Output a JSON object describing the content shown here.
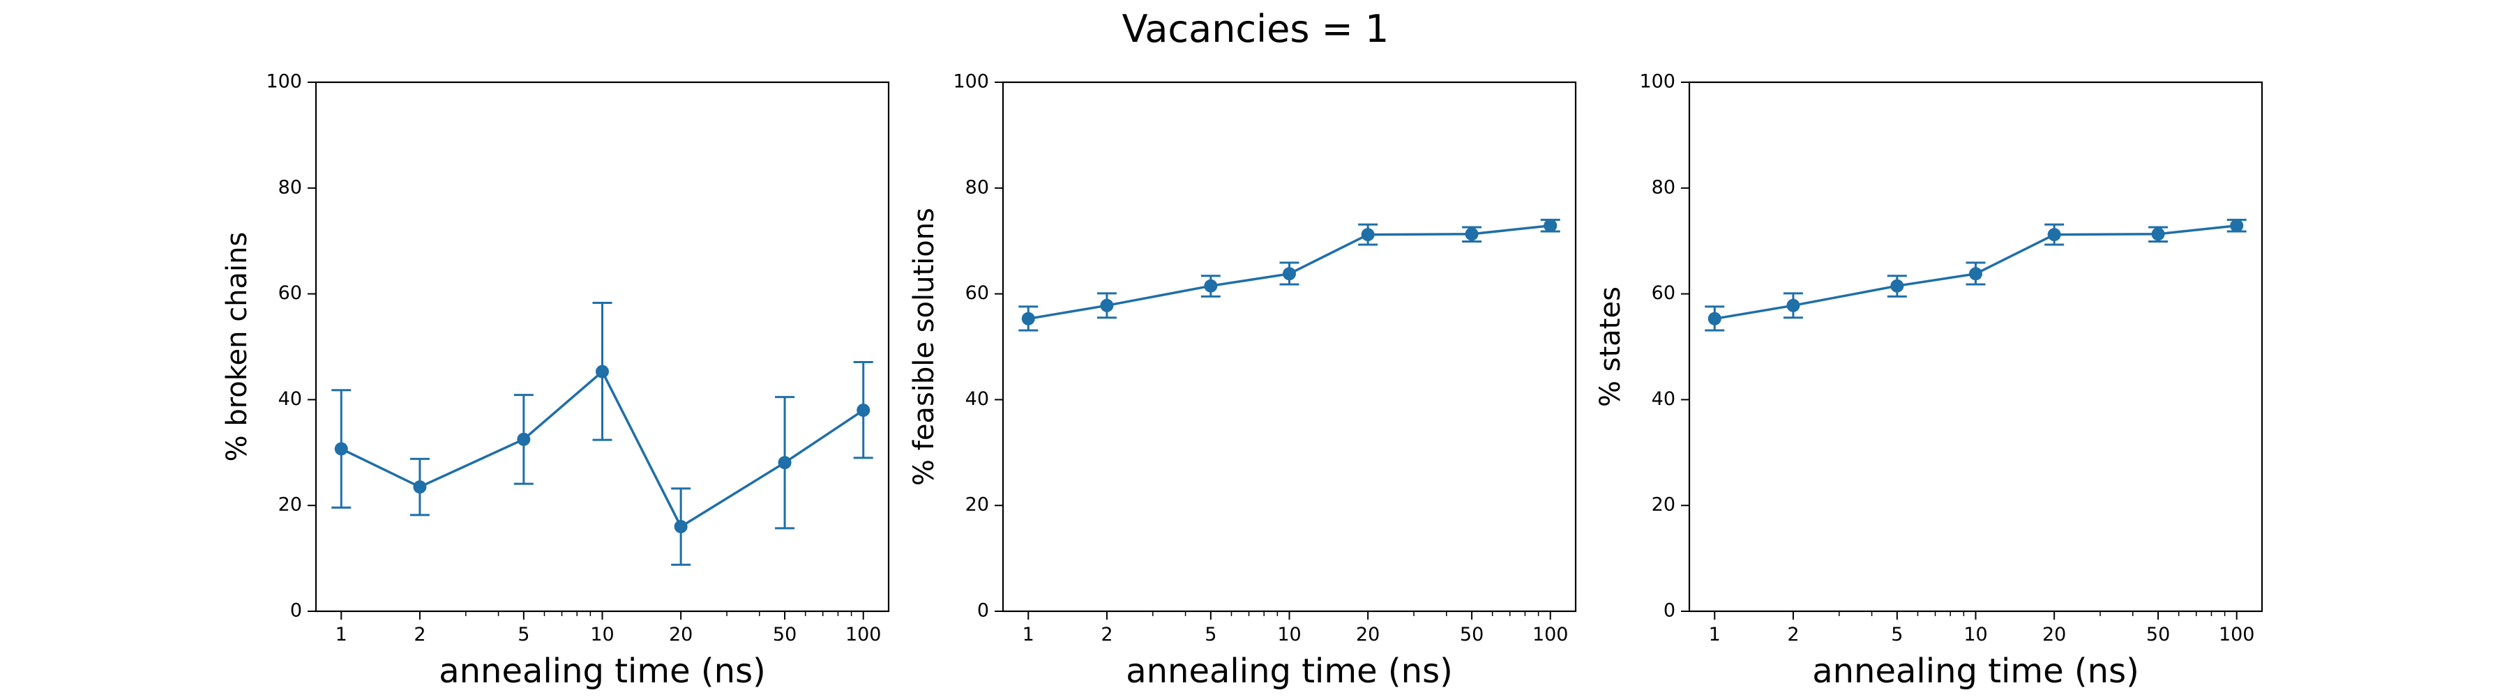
{
  "figure": {
    "suptitle": "Vacancies = 1"
  },
  "style": {
    "series_color": "#1f6fa8",
    "axis_color": "#000000",
    "background": "#ffffff"
  },
  "chart_data": [
    {
      "type": "line",
      "xscale": "log",
      "xlabel": "annealing time (ns)",
      "ylabel": "% broken chains",
      "x": [
        1,
        2,
        5,
        10,
        20,
        50,
        100
      ],
      "xtick_labels": [
        "1",
        "2",
        "5",
        "10",
        "20",
        "50",
        "100"
      ],
      "yticks": [
        0,
        20,
        40,
        60,
        80,
        100
      ],
      "ylim": [
        0,
        100
      ],
      "xlim": [
        0.8,
        125
      ],
      "series": [
        {
          "values": [
            30.7,
            23.5,
            32.5,
            45.3,
            16.0,
            28.1,
            38.0
          ],
          "err_low": [
            19.6,
            18.2,
            24.1,
            32.4,
            8.8,
            15.7,
            29.0
          ],
          "err_high": [
            41.8,
            28.8,
            40.9,
            58.3,
            23.2,
            40.5,
            47.1
          ]
        }
      ],
      "grid": false,
      "legend": "none"
    },
    {
      "type": "line",
      "xscale": "log",
      "xlabel": "annealing time (ns)",
      "ylabel": "% feasible solutions",
      "x": [
        1,
        2,
        5,
        10,
        20,
        50,
        100
      ],
      "xtick_labels": [
        "1",
        "2",
        "5",
        "10",
        "20",
        "50",
        "100"
      ],
      "yticks": [
        0,
        20,
        40,
        60,
        80,
        100
      ],
      "ylim": [
        0,
        100
      ],
      "xlim": [
        0.8,
        125
      ],
      "series": [
        {
          "values": [
            55.3,
            57.8,
            61.5,
            63.8,
            71.2,
            71.3,
            72.9
          ],
          "err_low": [
            53.1,
            55.5,
            59.5,
            61.8,
            69.3,
            69.9,
            71.8
          ],
          "err_high": [
            57.6,
            60.1,
            63.4,
            65.9,
            73.1,
            72.6,
            74.0
          ]
        }
      ],
      "grid": false,
      "legend": "none"
    },
    {
      "type": "line",
      "xscale": "log",
      "xlabel": "annealing time (ns)",
      "ylabel": "% states",
      "x": [
        1,
        2,
        5,
        10,
        20,
        50,
        100
      ],
      "xtick_labels": [
        "1",
        "2",
        "5",
        "10",
        "20",
        "50",
        "100"
      ],
      "yticks": [
        0,
        20,
        40,
        60,
        80,
        100
      ],
      "ylim": [
        0,
        100
      ],
      "xlim": [
        0.8,
        125
      ],
      "series": [
        {
          "values": [
            55.3,
            57.8,
            61.5,
            63.8,
            71.2,
            71.3,
            72.9
          ],
          "err_low": [
            53.1,
            55.5,
            59.5,
            61.8,
            69.3,
            69.9,
            71.8
          ],
          "err_high": [
            57.6,
            60.1,
            63.4,
            65.9,
            73.1,
            72.6,
            74.0
          ]
        }
      ],
      "grid": false,
      "legend": "none"
    }
  ]
}
